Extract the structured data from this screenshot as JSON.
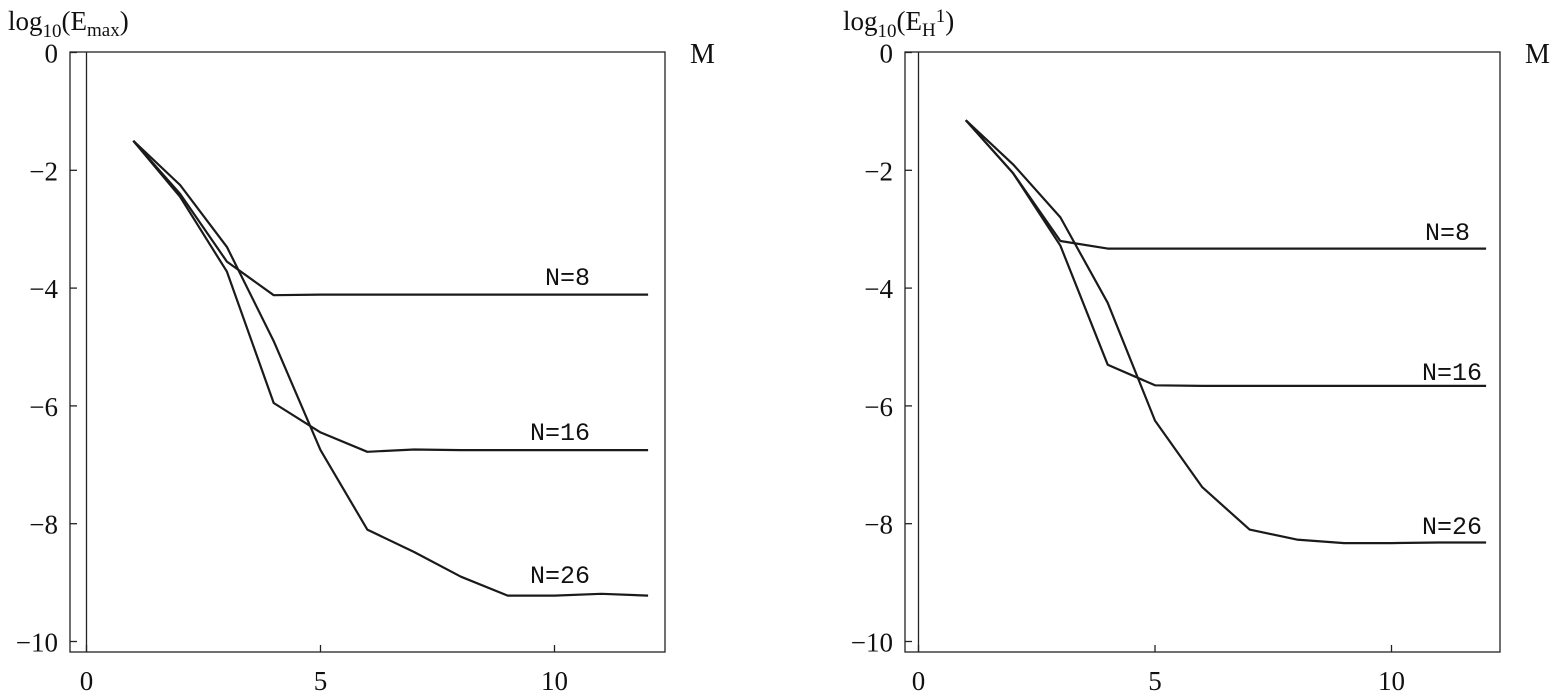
{
  "chart_data": [
    {
      "type": "line",
      "ylabel": {
        "base": "log",
        "sub": "10",
        "inner": "(E",
        "inner_sub": "max",
        "close": ")"
      },
      "xlabel": "M",
      "xlim": [
        0,
        12
      ],
      "ylim": [
        -10,
        0
      ],
      "xticks": [
        "0",
        "5",
        "10"
      ],
      "xtick_values": [
        0,
        5,
        10
      ],
      "yticks": [
        "0",
        "−2",
        "−4",
        "−6",
        "−8",
        "−10"
      ],
      "ytick_values": [
        0,
        -2,
        -4,
        -6,
        -8,
        -10
      ],
      "series": [
        {
          "name": "N=8",
          "x": [
            1,
            2,
            3,
            4,
            5,
            6,
            7,
            8,
            9,
            10,
            11,
            12
          ],
          "y": [
            -1.5,
            -2.4,
            -3.55,
            -4.12,
            -4.11,
            -4.11,
            -4.11,
            -4.11,
            -4.11,
            -4.11,
            -4.11,
            -4.11
          ]
        },
        {
          "name": "N=16",
          "x": [
            1,
            2,
            3,
            4,
            5,
            6,
            7,
            8,
            9,
            10,
            11,
            12
          ],
          "y": [
            -1.5,
            -2.45,
            -3.72,
            -5.95,
            -6.45,
            -6.78,
            -6.74,
            -6.75,
            -6.75,
            -6.75,
            -6.75,
            -6.75
          ]
        },
        {
          "name": "N=26",
          "x": [
            1,
            2,
            3,
            4,
            5,
            6,
            7,
            8,
            9,
            10,
            11,
            12
          ],
          "y": [
            -1.5,
            -2.25,
            -3.3,
            -4.9,
            -6.75,
            -8.1,
            -8.48,
            -8.9,
            -9.22,
            -9.22,
            -9.19,
            -9.22
          ]
        }
      ]
    },
    {
      "type": "line",
      "ylabel": {
        "base": "log",
        "sub": "10",
        "inner": "(E",
        "inner_sub": "H",
        "inner_sup": "1",
        "close": ")"
      },
      "xlabel": "M",
      "xlim": [
        0,
        12
      ],
      "ylim": [
        -10,
        0
      ],
      "xticks": [
        "0",
        "5",
        "10"
      ],
      "xtick_values": [
        0,
        5,
        10
      ],
      "yticks": [
        "0",
        "−2",
        "−4",
        "−6",
        "−8",
        "−10"
      ],
      "ytick_values": [
        0,
        -2,
        -4,
        -6,
        -8,
        -10
      ],
      "series": [
        {
          "name": "N=8",
          "x": [
            1,
            2,
            3,
            4,
            5,
            6,
            7,
            8,
            9,
            10,
            11,
            12
          ],
          "y": [
            -1.15,
            -2.05,
            -3.2,
            -3.33,
            -3.33,
            -3.33,
            -3.33,
            -3.33,
            -3.33,
            -3.33,
            -3.33,
            -3.33
          ]
        },
        {
          "name": "N=16",
          "x": [
            1,
            2,
            3,
            4,
            5,
            6,
            7,
            8,
            9,
            10,
            11,
            12
          ],
          "y": [
            -1.15,
            -2.05,
            -3.28,
            -5.3,
            -5.65,
            -5.66,
            -5.66,
            -5.66,
            -5.66,
            -5.66,
            -5.66,
            -5.66
          ]
        },
        {
          "name": "N=26",
          "x": [
            1,
            2,
            3,
            4,
            5,
            6,
            7,
            8,
            9,
            10,
            11,
            12
          ],
          "y": [
            -1.15,
            -1.9,
            -2.8,
            -4.25,
            -6.25,
            -7.38,
            -8.1,
            -8.27,
            -8.33,
            -8.33,
            -8.32,
            -8.32
          ]
        }
      ]
    }
  ]
}
